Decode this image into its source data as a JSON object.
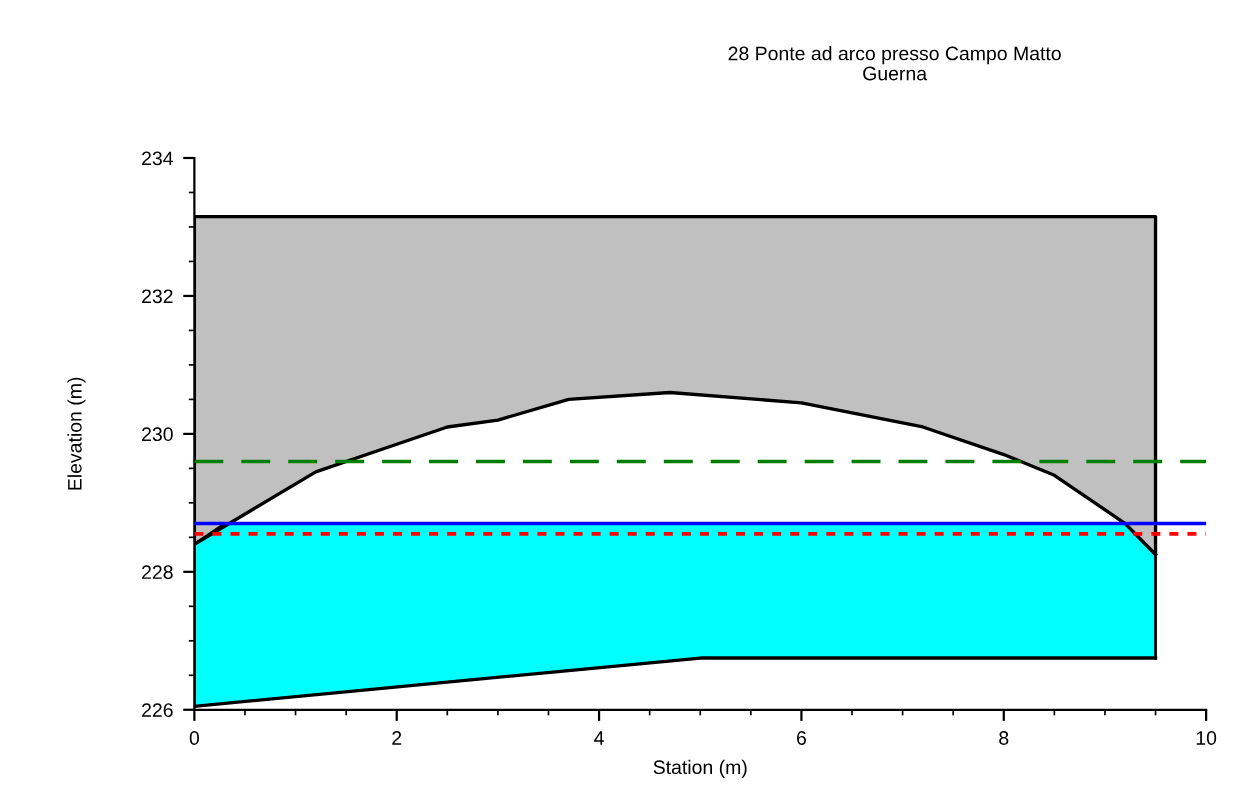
{
  "chart_data": {
    "type": "area",
    "title": "28 Ponte ad arco presso Campo Matto",
    "subtitle": "Guerna",
    "xlabel": "Station (m)",
    "ylabel": "Elevation (m)",
    "xlim": [
      0,
      10
    ],
    "xticks": [
      0,
      2,
      4,
      6,
      8,
      10
    ],
    "ylim": [
      226,
      234
    ],
    "yticks": [
      226,
      228,
      230,
      232,
      234
    ],
    "grid": false,
    "series": [
      {
        "type": "line",
        "color": "#000000",
        "x": [
          0,
          1.2,
          2,
          2.5,
          3,
          3.7,
          4.7,
          6,
          7.2,
          8,
          8.5,
          9.2,
          9.5
        ],
        "values": [
          228.4,
          229.45,
          229.85,
          230.1,
          230.2,
          230.5,
          230.6,
          230.45,
          230.1,
          229.7,
          229.4,
          228.7,
          228.25
        ],
        "lower": [
          228.4,
          229.45,
          229.85,
          230.1,
          230.2,
          230.5,
          230.6,
          230.45,
          230.1,
          229.7,
          229.4,
          228.7,
          228.25
        ],
        "upper": [
          233.15,
          233.15,
          233.15,
          233.15,
          233.15,
          233.15,
          233.15,
          233.15,
          233.15,
          233.15,
          233.15,
          233.15,
          233.15
        ]
      },
      {
        "type": "line",
        "color": "#000000",
        "x": [
          0,
          0,
          9.5,
          9.5
        ],
        "values": [
          228.4,
          233.15,
          233.15,
          228.25
        ]
      },
      {
        "color": "#00ffff",
        "x": [
          0,
          0.3,
          5,
          9.2,
          9.5
        ],
        "values": [
          228.4,
          228.7,
          228.7,
          228.7,
          228.25
        ]
      },
      {
        "type": "line",
        "color": "#000000",
        "x": [
          0,
          5,
          9.5
        ],
        "values": [
          226.05,
          226.75,
          226.75
        ]
      }
    ],
    "ref_lines": [
      {
        "axis": "y",
        "value": 229.6,
        "color": "#008000",
        "line_style": "dashed"
      },
      {
        "axis": "y",
        "value": 228.7,
        "color": "#0000ff",
        "line_style": "solid"
      },
      {
        "axis": "y",
        "value": 228.55,
        "color": "#ff0000",
        "line_style": "dotted"
      }
    ]
  }
}
